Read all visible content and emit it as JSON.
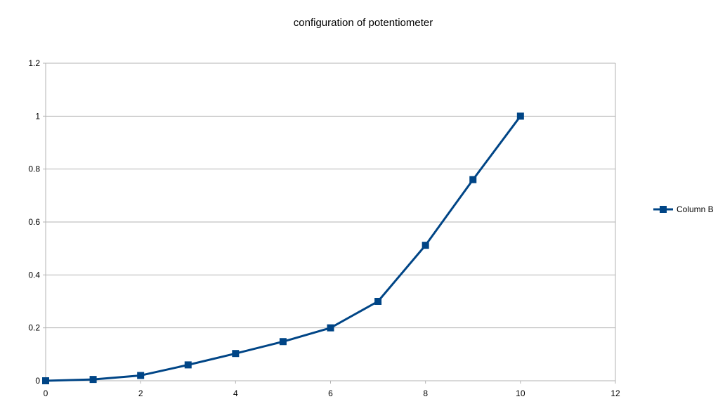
{
  "chart_data": {
    "type": "line",
    "title": "configuration of potentiometer",
    "xlabel": "",
    "ylabel": "",
    "xlim": [
      0,
      12
    ],
    "ylim": [
      0,
      1.2
    ],
    "xticks": [
      "0",
      "2",
      "4",
      "6",
      "8",
      "10",
      "12"
    ],
    "yticks": [
      "0",
      "0.2",
      "0.4",
      "0.6",
      "0.8",
      "1",
      "1.2"
    ],
    "grid": "horizontal",
    "legend": "right",
    "series": [
      {
        "name": "Column B",
        "color": "#004586",
        "marker": "square",
        "x": [
          0,
          1,
          2,
          3,
          4,
          5,
          6,
          7,
          8,
          9,
          10
        ],
        "y": [
          0,
          0.005,
          0.02,
          0.06,
          0.103,
          0.148,
          0.2,
          0.3,
          0.512,
          0.76,
          1.0
        ]
      }
    ]
  }
}
